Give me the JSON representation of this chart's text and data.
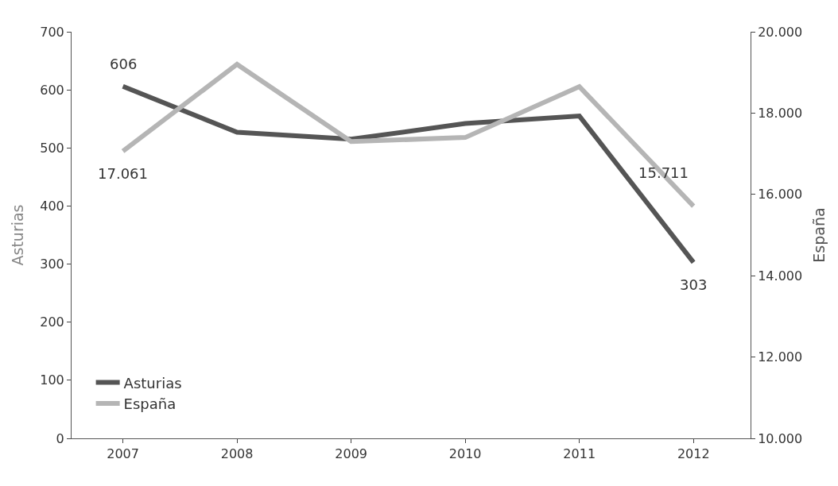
{
  "chart_data": {
    "type": "line",
    "ylabel": "Asturias",
    "y2label": "España",
    "categories": [
      "2007",
      "2008",
      "2009",
      "2010",
      "2011",
      "2012"
    ],
    "series": [
      {
        "name": "Asturias",
        "color": "#555555",
        "values": [
          606,
          527,
          515,
          542,
          555,
          303
        ]
      },
      {
        "name": "España",
        "color": "#b5b5b5",
        "axis": "y2",
        "values": [
          17061,
          19200,
          17300,
          17400,
          18650,
          15711
        ]
      }
    ],
    "ylim": [
      0,
      700
    ],
    "yticks": [
      0,
      100,
      200,
      300,
      400,
      500,
      600,
      700
    ],
    "y2lim": [
      10000,
      20000
    ],
    "y2ticks": [
      {
        "value": 10000,
        "label": "10.000"
      },
      {
        "value": 12000,
        "label": "12.000"
      },
      {
        "value": 14000,
        "label": "14.000"
      },
      {
        "value": 16000,
        "label": "16.000"
      },
      {
        "value": 18000,
        "label": "18.000"
      },
      {
        "value": 20000,
        "label": "20.000"
      }
    ],
    "annotations": [
      {
        "text": "606",
        "x": "2007",
        "y": 606
      },
      "17.061",
      "15.711",
      {
        "text": "303",
        "x": "2012",
        "y": 303
      }
    ],
    "legend": "bottom left",
    "marker": "none",
    "line_style": "solid"
  }
}
